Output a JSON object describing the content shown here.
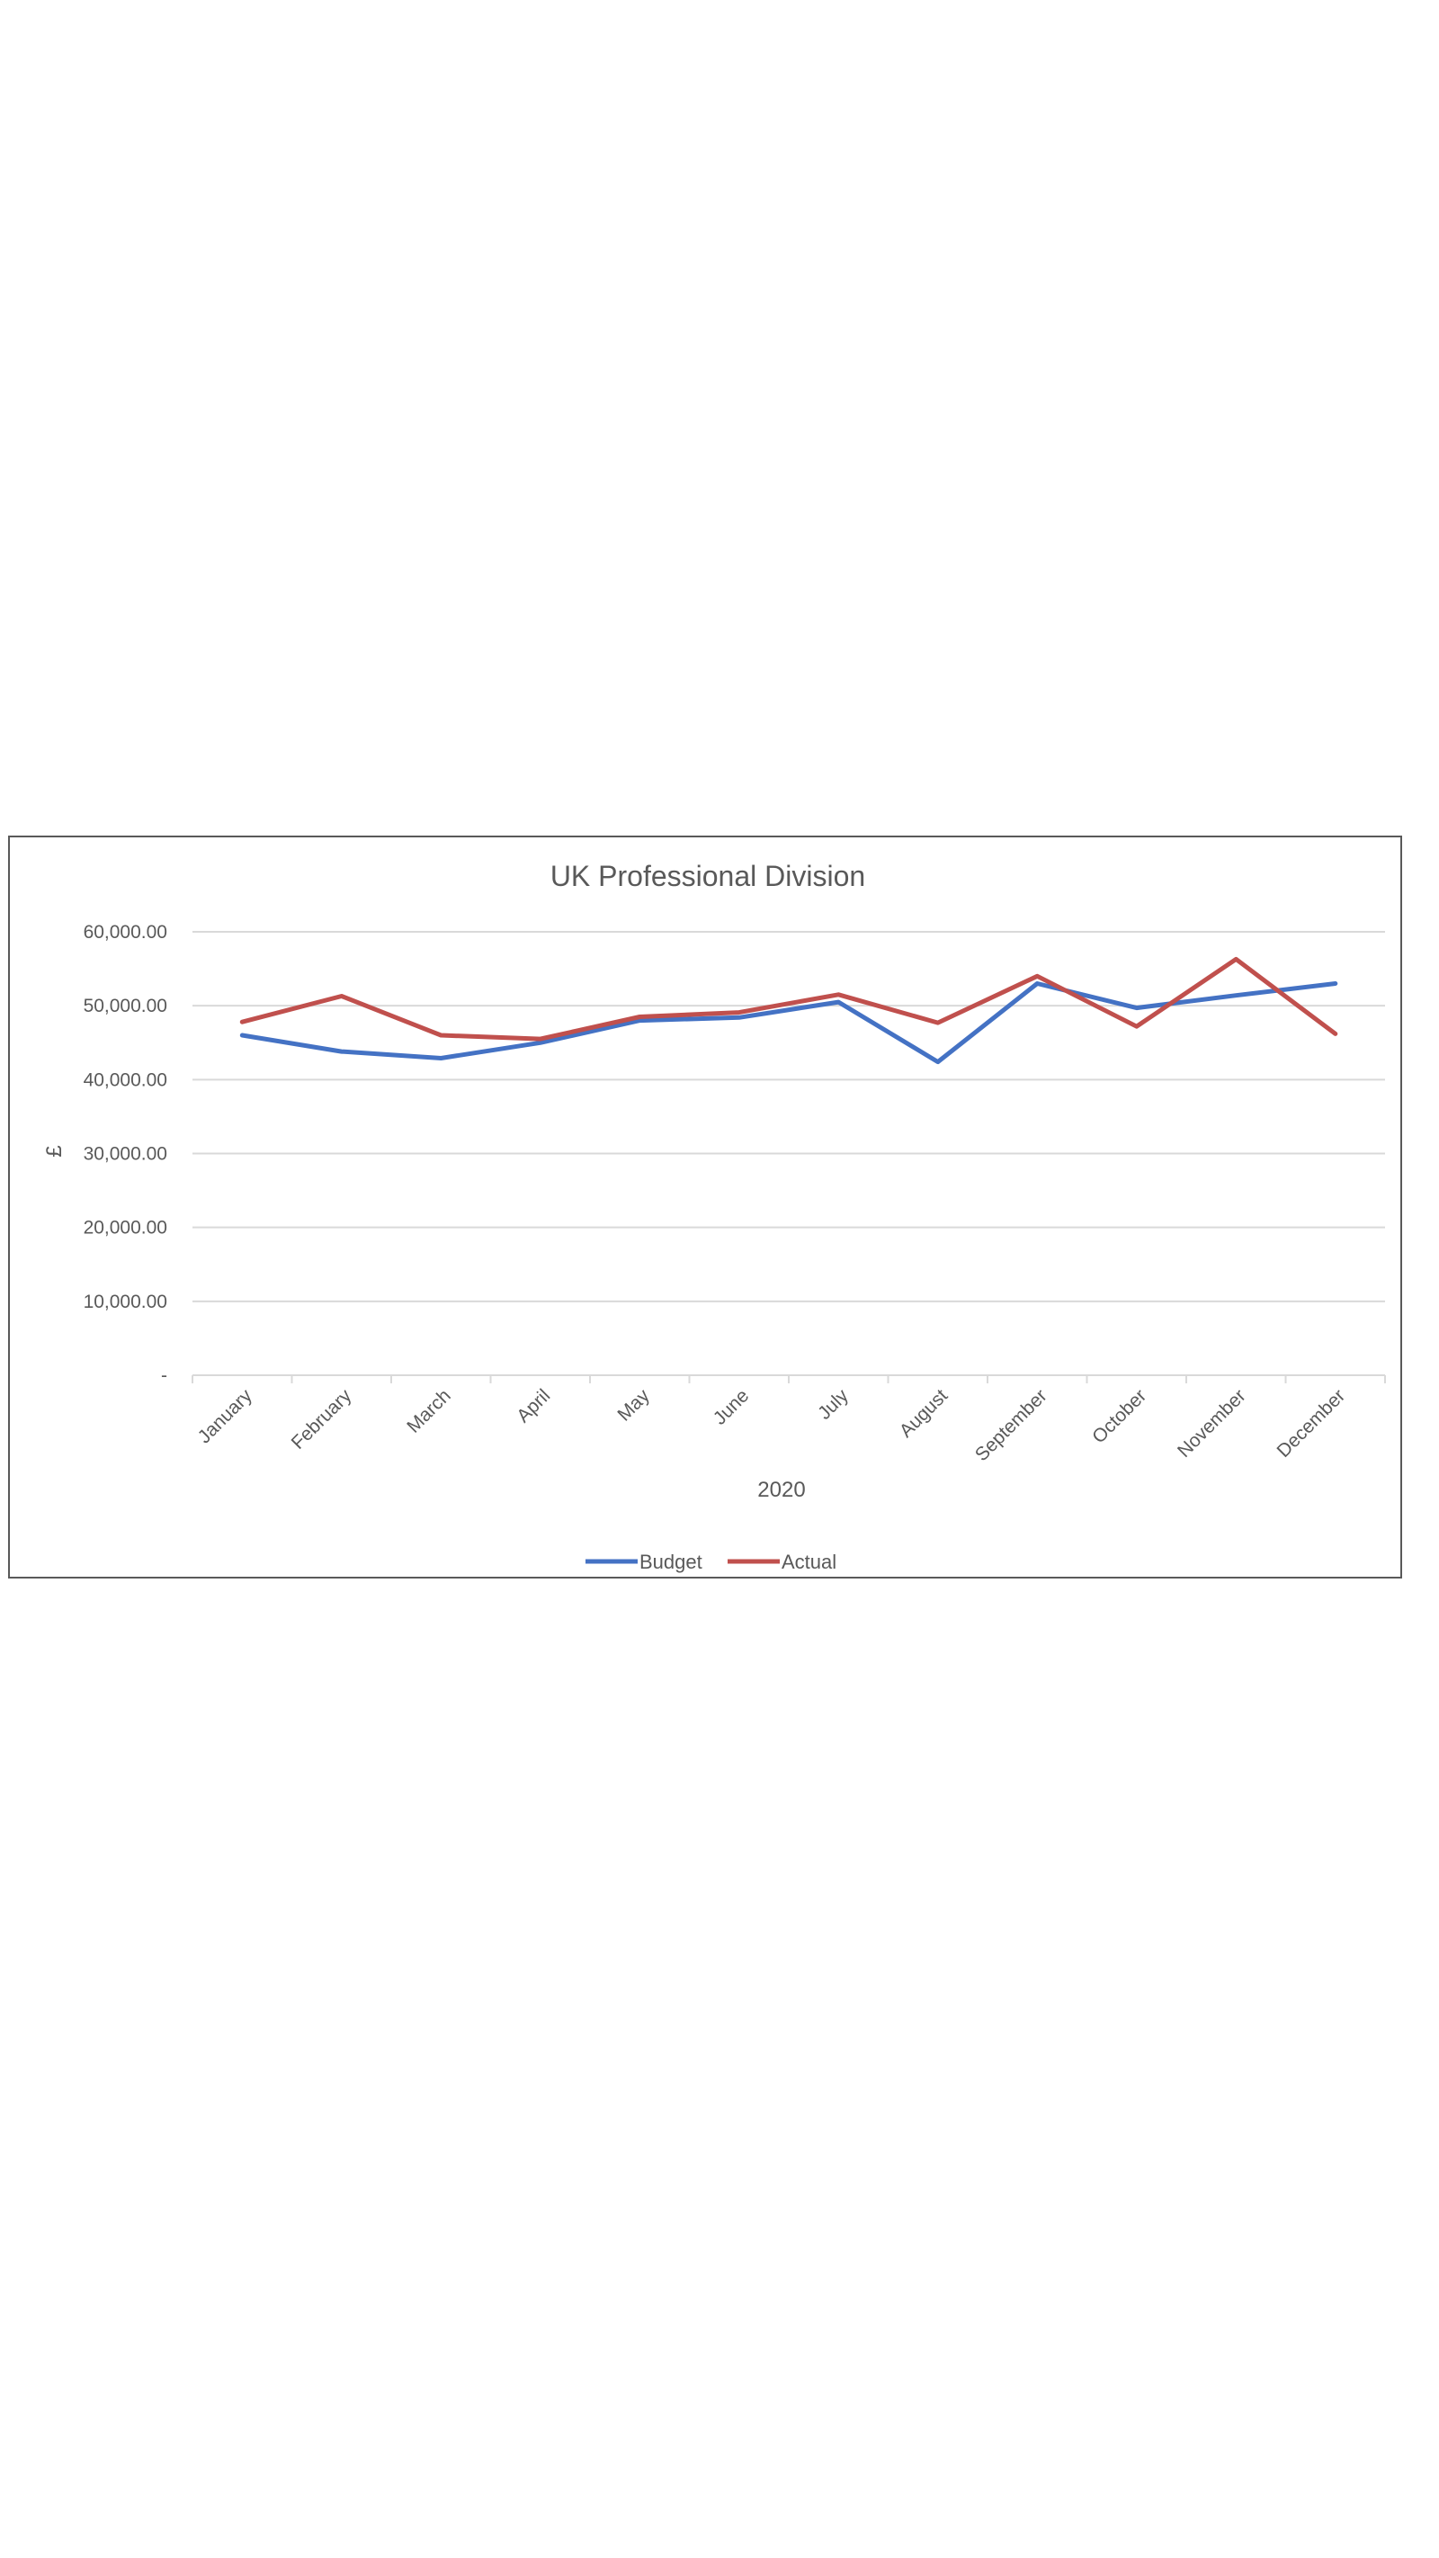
{
  "chart_data": {
    "type": "line",
    "title": "UK Professional Division",
    "xlabel": "2020",
    "ylabel": "£",
    "categories": [
      "January",
      "February",
      "March",
      "April",
      "May",
      "June",
      "July",
      "August",
      "September",
      "October",
      "November",
      "December"
    ],
    "series": [
      {
        "name": "Budget",
        "color": "#4472c4",
        "values": [
          46000,
          43800,
          42900,
          45000,
          48000,
          48400,
          50500,
          42400,
          53000,
          49700,
          51400,
          53000
        ]
      },
      {
        "name": "Actual",
        "color": "#c0504d",
        "values": [
          47800,
          51300,
          46000,
          45500,
          48500,
          49100,
          51500,
          47700,
          54000,
          47200,
          56300,
          46200
        ]
      }
    ],
    "ylim": [
      0,
      60000
    ],
    "yticks": [
      0,
      10000,
      20000,
      30000,
      40000,
      50000,
      60000
    ],
    "ytick_labels": [
      "-",
      "10,000.00",
      "20,000.00",
      "30,000.00",
      "40,000.00",
      "50,000.00",
      "60,000.00"
    ],
    "grid": true,
    "legend_position": "bottom"
  }
}
